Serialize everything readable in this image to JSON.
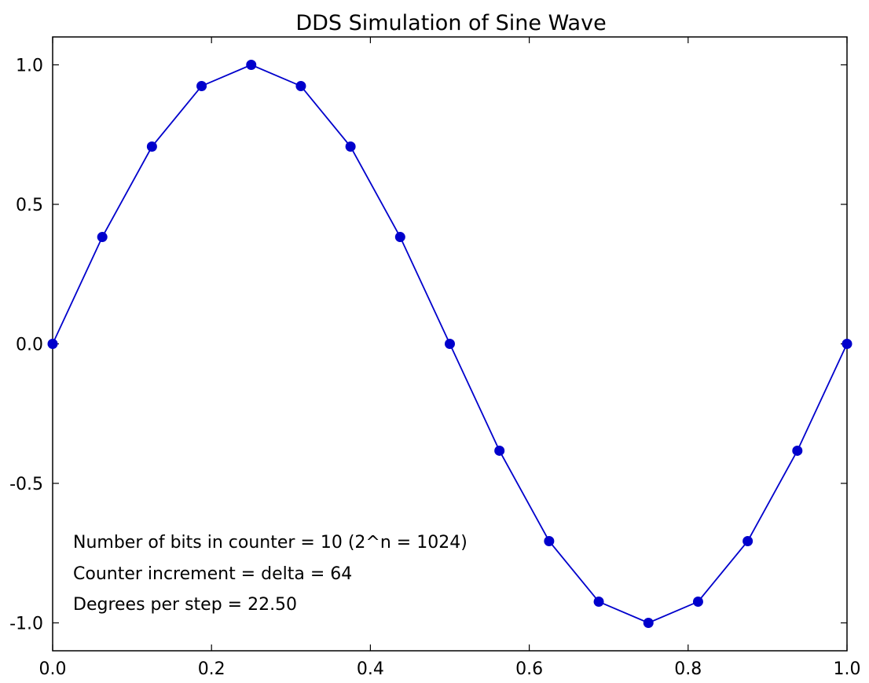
{
  "chart_data": {
    "type": "line",
    "title": "DDS Simulation of Sine Wave",
    "xlabel": "",
    "ylabel": "",
    "xlim": [
      0.0,
      1.0
    ],
    "ylim": [
      -1.1,
      1.1
    ],
    "xticks": [
      0.0,
      0.2,
      0.4,
      0.6,
      0.8,
      1.0
    ],
    "xtick_labels": [
      "0.0",
      "0.2",
      "0.4",
      "0.6",
      "0.8",
      "1.0"
    ],
    "yticks": [
      1.0,
      0.5,
      0.0,
      -0.5,
      -1.0
    ],
    "ytick_labels": [
      "1.0",
      "0.5",
      "0.0",
      "-0.5",
      "-1.0"
    ],
    "grid": false,
    "series": [
      {
        "marker": "circle",
        "color": "#0000cc",
        "x": [
          0.0,
          0.0625,
          0.125,
          0.1875,
          0.25,
          0.3125,
          0.375,
          0.4375,
          0.5,
          0.5625,
          0.625,
          0.6875,
          0.75,
          0.8125,
          0.875,
          0.9375,
          1.0
        ],
        "y": [
          0.0,
          0.383,
          0.707,
          0.924,
          1.0,
          0.924,
          0.707,
          0.383,
          0.0,
          -0.383,
          -0.707,
          -0.924,
          -1.0,
          -0.924,
          -0.707,
          -0.383,
          0.0
        ]
      }
    ],
    "annotations": [
      "Number of bits in counter = 10 (2^n = 1024)",
      "Counter increment = delta = 64",
      "Degrees per step = 22.50"
    ]
  }
}
